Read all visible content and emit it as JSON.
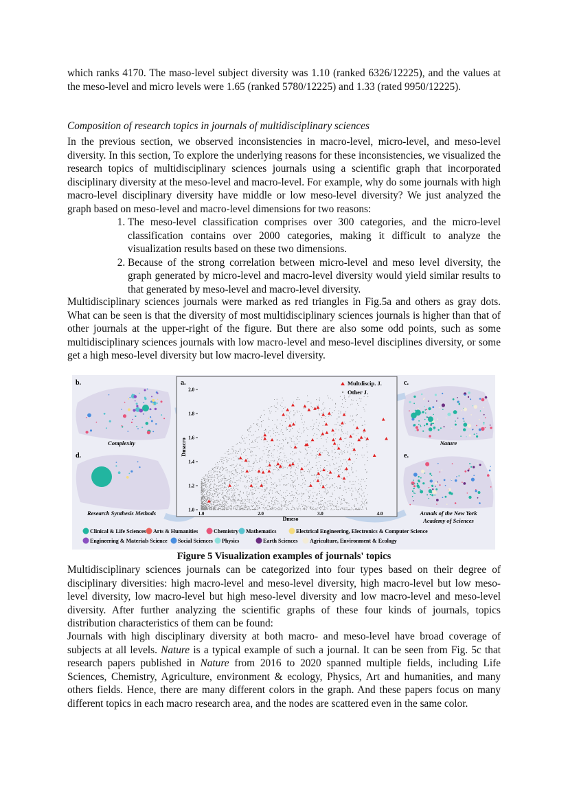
{
  "paragraph_1": "which ranks 4170. The maso-level subject diversity was 1.10 (ranked 6326/12225), and the values at the meso-level and micro levels were 1.65 (ranked 5780/12225) and 1.33 (rated 9950/12225).",
  "section_heading": "Composition of research topics in journals of multidisciplinary sciences",
  "paragraph_2": "In the previous section, we observed inconsistencies in macro-level, micro-level, and meso-level diversity. In this section, To explore the underlying reasons for these inconsistencies, we visualized the research topics of multidisciplinary sciences journals using a scientific graph that incorporated disciplinary diversity at the meso-level and macro-level. For example, why do some journals with high macro-level disciplinary diversity have middle or low meso-level diversity? We just analyzed the graph based on meso-level and macro-level dimensions for two reasons:",
  "list_items": [
    "The meso-level classification comprises over 300 categories, and the micro-level classification contains over 2000 categories, making it difficult to analyze the visualization results based on these two dimensions.",
    "Because of the strong correlation between micro-level and meso level diversity, the graph generated by micro-level and macro-level diversity would yield similar results to that generated by meso-level and macro-level diversity."
  ],
  "paragraph_3": "Multidisciplinary sciences journals were marked as red triangles in Fig.5a and others as gray dots. What can be seen is that the diversity of most multidisciplinary sciences journals is higher than that of other journals at the upper-right of the figure. But there are also some odd points, such as some multidisciplinary sciences journals with low macro-level and meso-level disciplines diversity, or some get a high meso-level diversity but low macro-level diversity.",
  "figure": {
    "caption": "Figure 5 Visualization examples of journals' topics",
    "panel_labels": {
      "a": "a.",
      "b": "b.",
      "c": "c.",
      "d": "d.",
      "e": "e."
    },
    "panel_titles": {
      "b": "Complexity",
      "c": "Nature",
      "d": "Research Synthesis Methods",
      "e_line1": "Annals of the New York",
      "e_line2": "Academy of Sciences"
    },
    "legend_categories": [
      {
        "label": "Clinical & Life Sciences",
        "color": "#22b5a0"
      },
      {
        "label": "Arts & Humanities",
        "color": "#e8605a"
      },
      {
        "label": "Chemistry",
        "color": "#e8557a"
      },
      {
        "label": "Mathematics",
        "color": "#5ac4d0"
      },
      {
        "label": "Electrical Engineering, Electronics & Computer Science",
        "color": "#f5dc80"
      },
      {
        "label": "Engineering & Materials Science",
        "color": "#8a4fc0"
      },
      {
        "label": "Social Sciences",
        "color": "#4a8ee0"
      },
      {
        "label": "Physics",
        "color": "#8ee0dc"
      },
      {
        "label": "Earth Sciences",
        "color": "#6a2d80"
      },
      {
        "label": "Agriculture, Environment & Ecology",
        "color": "#f3ecd8"
      }
    ],
    "background_color": "#ecedf5"
  },
  "chart_data": {
    "type": "scatter",
    "xlabel": "Dmeso",
    "ylabel": "Dmacro",
    "xlim": [
      1.0,
      4.2
    ],
    "ylim": [
      1.0,
      2.05
    ],
    "x_ticks": [
      "1.0",
      "2.0",
      "3.0",
      "4.0"
    ],
    "y_ticks": [
      "1.0",
      "1.2",
      "1.4",
      "1.6",
      "1.8",
      "2.0"
    ],
    "legend_position": "top-right",
    "series": [
      {
        "name": "Multdiscip. J.",
        "marker": "triangle",
        "color": "#e02020",
        "points": [
          [
            1.13,
            1.07
          ],
          [
            1.48,
            1.2
          ],
          [
            1.66,
            1.43
          ],
          [
            1.75,
            1.41
          ],
          [
            1.77,
            1.32
          ],
          [
            1.84,
            1.2
          ],
          [
            1.97,
            1.32
          ],
          [
            2.01,
            1.2
          ],
          [
            2.04,
            1.31
          ],
          [
            2.07,
            1.62
          ],
          [
            2.07,
            1.59
          ],
          [
            2.14,
            1.32
          ],
          [
            2.15,
            1.37
          ],
          [
            2.19,
            1.58
          ],
          [
            2.29,
            1.38
          ],
          [
            2.33,
            1.36
          ],
          [
            2.38,
            1.79
          ],
          [
            2.45,
            1.83
          ],
          [
            2.49,
            1.7
          ],
          [
            2.54,
            1.87
          ],
          [
            2.55,
            1.71
          ],
          [
            2.58,
            1.52
          ],
          [
            2.49,
            1.37
          ],
          [
            2.54,
            1.38
          ],
          [
            2.69,
            1.34
          ],
          [
            2.74,
            1.86
          ],
          [
            2.76,
            1.54
          ],
          [
            2.78,
            1.54
          ],
          [
            2.81,
            1.83
          ],
          [
            2.84,
            1.2
          ],
          [
            2.87,
            1.58
          ],
          [
            2.91,
            1.84
          ],
          [
            2.96,
            1.85
          ],
          [
            2.96,
            1.24
          ],
          [
            2.97,
            1.3
          ],
          [
            2.99,
            1.46
          ],
          [
            3.05,
            1.79
          ],
          [
            3.04,
            1.63
          ],
          [
            3.05,
            1.19
          ],
          [
            3.06,
            1.33
          ],
          [
            3.1,
            1.71
          ],
          [
            3.11,
            1.64
          ],
          [
            3.15,
            1.8
          ],
          [
            3.17,
            1.31
          ],
          [
            3.21,
            1.66
          ],
          [
            3.22,
            1.58
          ],
          [
            3.24,
            1.55
          ],
          [
            3.31,
            1.51
          ],
          [
            3.31,
            1.28
          ],
          [
            3.34,
            1.59
          ],
          [
            3.37,
            1.72
          ],
          [
            3.4,
            1.79
          ],
          [
            3.4,
            1.26
          ],
          [
            3.44,
            1.34
          ],
          [
            3.49,
            1.42
          ],
          [
            3.51,
            1.61
          ],
          [
            3.57,
            1.5
          ],
          [
            3.62,
            1.68
          ],
          [
            3.65,
            1.58
          ],
          [
            3.69,
            1.6
          ],
          [
            3.74,
            1.66
          ],
          [
            3.79,
            1.59
          ],
          [
            3.91,
            1.45
          ],
          [
            4.06,
            1.75
          ],
          [
            4.11,
            1.59
          ]
        ]
      },
      {
        "name": "Other J.",
        "marker": "dot",
        "color": "#888888"
      }
    ]
  },
  "paragraph_4": "Multidisciplinary sciences journals can be categorized into four types based on their degree of disciplinary diversities: high macro-level and meso-level diversity, high macro-level but low meso-level diversity, low macro-level but high meso-level diversity and low macro-level and meso-level diversity. After further analyzing the scientific graphs of these four kinds of journals, topics distribution characteristics of them can be found:",
  "paragraph_5": {
    "part1": "Journals with high disciplinary diversity at both macro- and meso-level have broad coverage of subjects at all levels. ",
    "journal1": "Nature",
    "part2": " is a typical example of such a journal. It can be seen from Fig. 5c that research papers published in ",
    "journal2": "Nature",
    "part3": " from 2016 to 2020 spanned multiple fields, including Life Sciences, Chemistry, Agriculture, environment & ecology, Physics, Art and humanities, and many others fields. Hence, there are many different colors in the graph. And these papers focus on many different topics in each macro research area, and the nodes are scattered even in the same color."
  }
}
